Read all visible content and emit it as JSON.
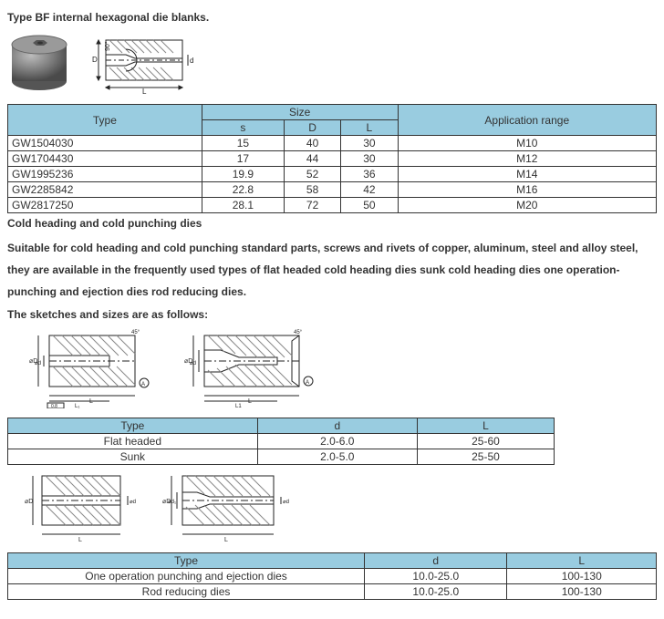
{
  "title1": "Type BF internal hexagonal die blanks.",
  "table1": {
    "headers": {
      "type": "Type",
      "size": "Size",
      "s": "s",
      "D": "D",
      "L": "L",
      "app": "Application range"
    },
    "rows": [
      {
        "type": "GW1504030",
        "s": "15",
        "D": "40",
        "L": "30",
        "app": "M10"
      },
      {
        "type": "GW1704430",
        "s": "17",
        "D": "44",
        "L": "30",
        "app": "M12"
      },
      {
        "type": "GW1995236",
        "s": "19.9",
        "D": "52",
        "L": "36",
        "app": "M14"
      },
      {
        "type": "GW2285842",
        "s": "22.8",
        "D": "58",
        "L": "42",
        "app": "M16"
      },
      {
        "type": "GW2817250",
        "s": "28.1",
        "D": "72",
        "L": "50",
        "app": "M20"
      }
    ]
  },
  "title2": "Cold heading and cold punching dies",
  "para1": "Suitable for cold heading and cold punching standard parts, screws and rivets of copper, aluminum, steel and alloy steel, they are available in the frequently used types of flat headed cold heading dies sunk cold heading dies one operation-punching and ejection dies rod reducing dies.",
  "title3": "The sketches and sizes are as follows:",
  "table2": {
    "headers": {
      "type": "Type",
      "d": "d",
      "L": "L"
    },
    "rows": [
      {
        "type": "Flat headed",
        "d": "2.0-6.0",
        "L": "25-60"
      },
      {
        "type": "Sunk",
        "d": "2.0-5.0",
        "L": "25-50"
      }
    ]
  },
  "table3": {
    "headers": {
      "type": "Type",
      "d": "d",
      "L": "L"
    },
    "rows": [
      {
        "type": "One operation punching and ejection dies",
        "d": "10.0-25.0",
        "L": "100-130"
      },
      {
        "type": "Rod reducing dies",
        "d": "10.0-25.0",
        "L": "100-130"
      }
    ]
  },
  "colors": {
    "header_bg": "#99cce0",
    "border": "#333333",
    "text": "#333333",
    "hatch": "#888888",
    "line": "#222222"
  }
}
